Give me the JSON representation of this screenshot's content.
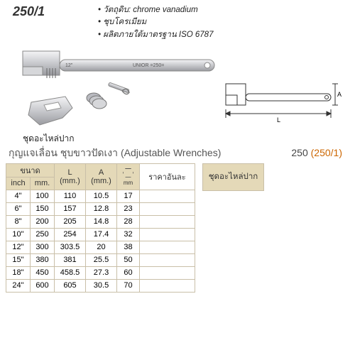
{
  "model": "250/1",
  "features": [
    "วัตถุดิบ: chrome vanadium",
    "ชุบโครเมียม",
    "ผลิตภายใต้มาตรฐาน ISO 6787"
  ],
  "wrench_brand": "UNIOR  =250=",
  "wrench_size_mark": "12\"",
  "parts_label": "ชุดอะไหล่ปาก",
  "diagram_labels": {
    "A": "A",
    "L": "L"
  },
  "title": {
    "th": "กุญแจเลื่อน ชุบขาวปัดเงา",
    "en": "(Adjustable Wrenches)",
    "code1": "250",
    "code2": "(250/1)"
  },
  "headers": {
    "size": "ขนาด",
    "inch": "inch",
    "mm": "mm.",
    "L": "L\n(mm.)",
    "A": "A\n(mm.)",
    "hex_unit": "mm",
    "price": "ราคาอันละ",
    "spare": "ชุดอะไหล่ปาก"
  },
  "rows": [
    {
      "inch": "4\"",
      "mm": "100",
      "L": "110",
      "A": "10.5",
      "hex": "17"
    },
    {
      "inch": "6\"",
      "mm": "150",
      "L": "157",
      "A": "12.8",
      "hex": "23"
    },
    {
      "inch": "8\"",
      "mm": "200",
      "L": "205",
      "A": "14.8",
      "hex": "28"
    },
    {
      "inch": "10\"",
      "mm": "250",
      "L": "254",
      "A": "17.4",
      "hex": "32"
    },
    {
      "inch": "12\"",
      "mm": "300",
      "L": "303.5",
      "A": "20",
      "hex": "38"
    },
    {
      "inch": "15\"",
      "mm": "380",
      "L": "381",
      "A": "25.5",
      "hex": "50"
    },
    {
      "inch": "18\"",
      "mm": "450",
      "L": "458.5",
      "A": "27.3",
      "hex": "60"
    },
    {
      "inch": "24\"",
      "mm": "600",
      "L": "605",
      "A": "30.5",
      "hex": "70"
    }
  ],
  "colors": {
    "header_bg": "#e4d9b8",
    "border": "#c9bfa8",
    "accent": "#cc6600",
    "metal_light": "#e8e8ea",
    "metal_mid": "#bfc0c4",
    "metal_dark": "#8a8b90"
  }
}
